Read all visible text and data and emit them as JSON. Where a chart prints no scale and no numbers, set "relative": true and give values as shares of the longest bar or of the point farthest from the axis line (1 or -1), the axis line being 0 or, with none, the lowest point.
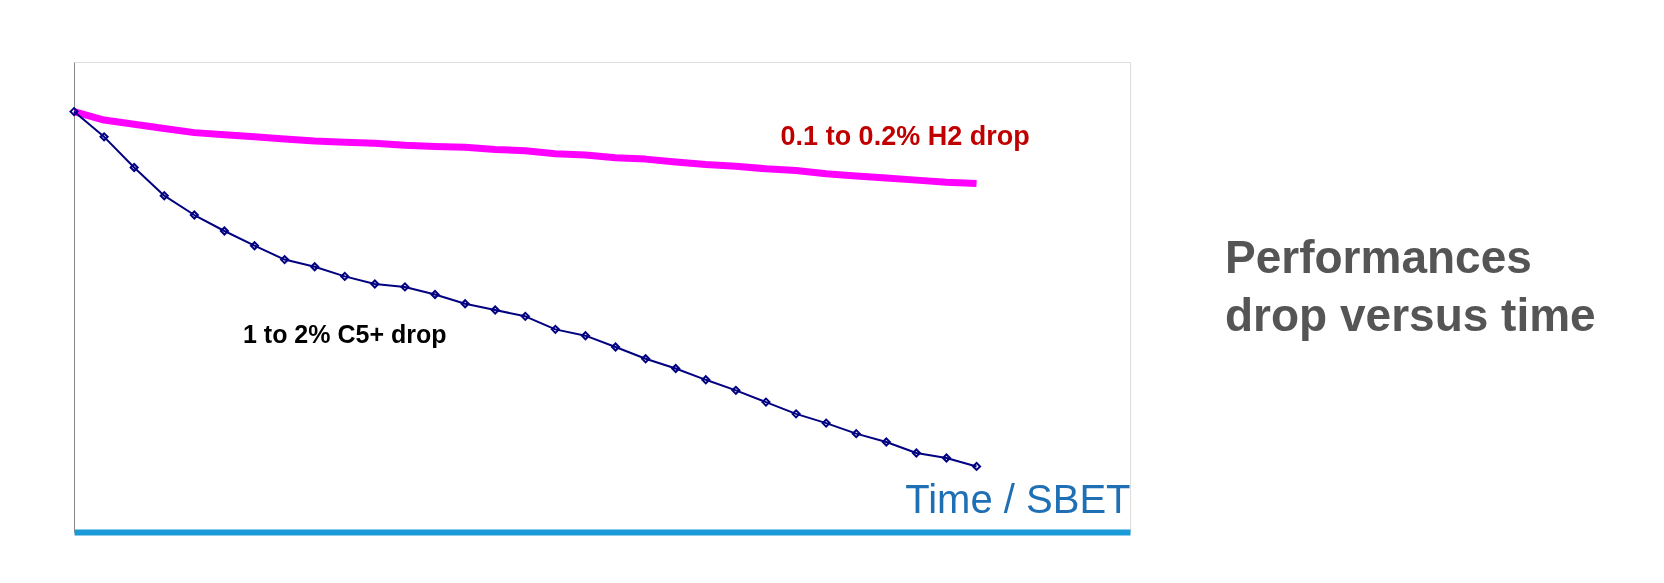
{
  "chart_data": {
    "type": "line",
    "relative": true,
    "xlabel": "Time / SBET",
    "categories": [
      null,
      null,
      null,
      null,
      null,
      null,
      null,
      null,
      null,
      null,
      null,
      null,
      null,
      null,
      null,
      null,
      null,
      null,
      null,
      null,
      null,
      null,
      null,
      null,
      null,
      null,
      null,
      null,
      null,
      null,
      null
    ],
    "series": [
      {
        "color": "#ff00ff",
        "marker": "none",
        "values": [
          1.0,
          0.98,
          0.97,
          0.96,
          0.95,
          0.945,
          0.94,
          0.935,
          0.93,
          0.927,
          0.925,
          0.92,
          0.917,
          0.915,
          0.91,
          0.907,
          0.9,
          0.897,
          0.89,
          0.887,
          0.88,
          0.874,
          0.87,
          0.864,
          0.86,
          0.852,
          0.847,
          0.842,
          0.837,
          0.832,
          0.829
        ]
      },
      {
        "color": "#000080",
        "marker": "diamond",
        "values": [
          1.0,
          0.94,
          0.867,
          0.8,
          0.754,
          0.716,
          0.681,
          0.648,
          0.631,
          0.608,
          0.59,
          0.583,
          0.565,
          0.543,
          0.528,
          0.513,
          0.482,
          0.467,
          0.44,
          0.412,
          0.389,
          0.362,
          0.337,
          0.309,
          0.281,
          0.259,
          0.234,
          0.214,
          0.188,
          0.176,
          0.156
        ]
      }
    ],
    "annotations": [
      "0.1 to 0.2% H2 drop",
      "1 to 2% C5+ drop",
      "Performances\ndrop versus time"
    ]
  }
}
